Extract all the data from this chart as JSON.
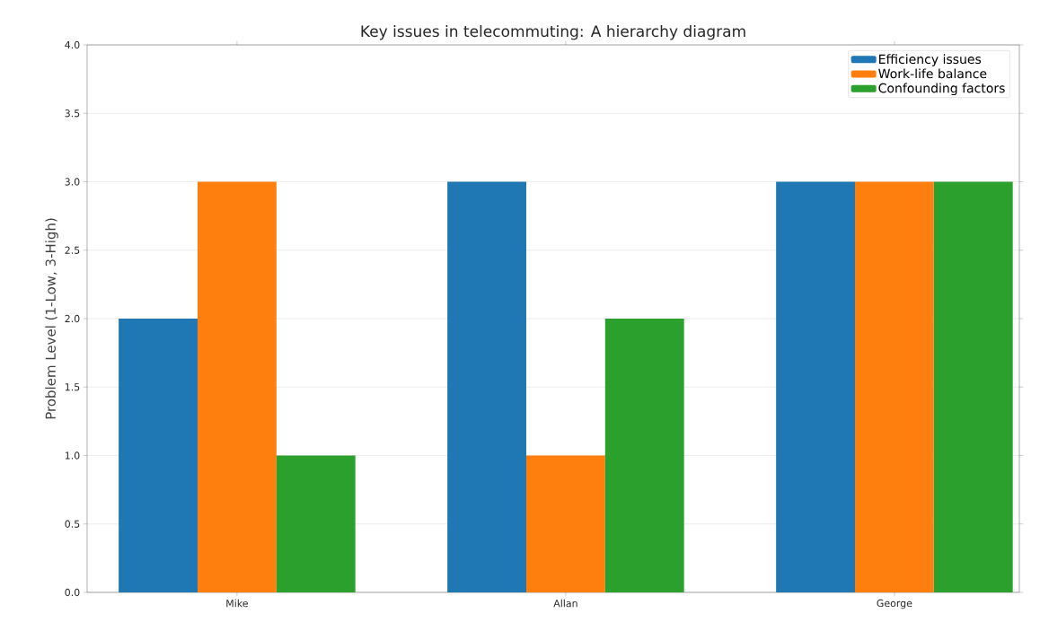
{
  "chart_data": {
    "type": "bar",
    "title": "Key issues in telecommuting: A hierarchy diagram",
    "ylabel": "Problem Level (1-Low, 3-High)",
    "categories": [
      "Mike",
      "Allan",
      "George"
    ],
    "series": [
      {
        "name": "Efficiency issues",
        "color": "#1f77b4",
        "values": [
          2,
          3,
          3
        ]
      },
      {
        "name": "Work-life balance",
        "color": "#ff7f0e",
        "values": [
          3,
          1,
          3
        ]
      },
      {
        "name": "Confounding factors",
        "color": "#2ca02c",
        "values": [
          1,
          2,
          3
        ]
      }
    ],
    "ylim": [
      0,
      4
    ],
    "yticks": [
      {
        "value": 0,
        "label": "0.0"
      },
      {
        "value": 0.5,
        "label": "0.5"
      },
      {
        "value": 1,
        "label": "1.0"
      },
      {
        "value": 1.5,
        "label": "1.5"
      },
      {
        "value": 2,
        "label": "2.0"
      },
      {
        "value": 2.5,
        "label": "2.5"
      },
      {
        "value": 3,
        "label": "3.0"
      },
      {
        "value": 3.5,
        "label": "3.5"
      },
      {
        "value": 4,
        "label": "4.0"
      }
    ],
    "grid": "y",
    "legend": "top right"
  }
}
